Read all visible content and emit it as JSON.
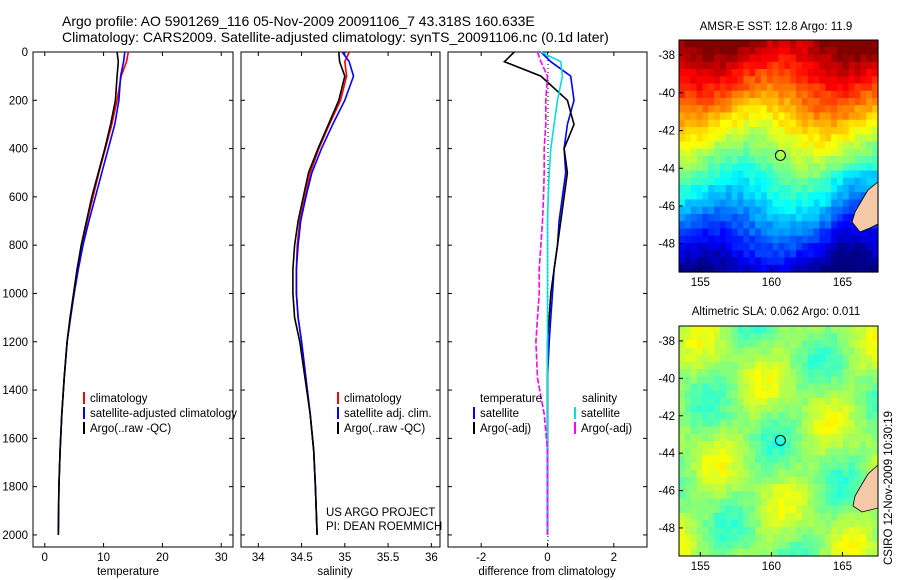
{
  "header": {
    "line1": "Argo profile: AO 5901269_116 05-Nov-2009 20091106_7 43.318S 160.633E",
    "line2": "Climatology: CARS2009. Satellite-adjusted climatology: synTS_20091106.nc (0.1d later)"
  },
  "credit": {
    "line1": "US ARGO PROJECT",
    "line2": "PI: DEAN ROEMMICH"
  },
  "side_label": "CSIRO 12-Nov-2009 10:30:19",
  "colors": {
    "climatology": "#ff0000",
    "satellite": "#0000ff",
    "argo": "#000000",
    "sal_satellite": "#00e0e0",
    "sal_argo": "#ff00ff"
  },
  "chart_data": [
    {
      "id": "temperature",
      "type": "line",
      "xlabel": "temperature",
      "xlim": [
        -2,
        32
      ],
      "xticks": [
        0,
        10,
        20,
        30
      ],
      "ylim": [
        0,
        2050
      ],
      "yticks": [
        0,
        200,
        400,
        600,
        800,
        1000,
        1200,
        1400,
        1600,
        1800,
        2000
      ],
      "y_reversed": true,
      "legend": [
        "climatology",
        "satellite-adjusted climatology",
        "Argo(..raw -QC)"
      ],
      "series": [
        {
          "name": "climatology",
          "color": "red",
          "x": [
            14.2,
            13.9,
            13.0,
            12.3,
            11.4,
            10.3,
            9.2,
            8.2,
            7.2,
            6.3,
            5.5,
            4.9,
            4.3,
            3.8,
            3.3,
            2.9,
            2.6,
            2.4,
            2.3
          ],
          "y": [
            0,
            40,
            100,
            200,
            300,
            400,
            500,
            600,
            700,
            800,
            900,
            1000,
            1100,
            1200,
            1350,
            1500,
            1650,
            1800,
            2000
          ]
        },
        {
          "name": "satellite-adjusted climatology",
          "color": "blue",
          "x": [
            13.6,
            13.4,
            12.9,
            12.6,
            11.9,
            10.8,
            9.7,
            8.6,
            7.5,
            6.5,
            5.7,
            5.0,
            4.4,
            3.8,
            3.3,
            2.9,
            2.6,
            2.4,
            2.3
          ],
          "y": [
            0,
            40,
            100,
            200,
            300,
            400,
            500,
            600,
            700,
            800,
            900,
            1000,
            1100,
            1200,
            1350,
            1500,
            1650,
            1800,
            2000
          ]
        },
        {
          "name": "Argo(..raw -QC)",
          "color": "black",
          "x": [
            12.3,
            12.5,
            12.3,
            12.0,
            11.2,
            10.2,
            9.1,
            8.0,
            7.1,
            6.2,
            5.5,
            4.9,
            4.3,
            3.8,
            3.3,
            2.9,
            2.6,
            2.4,
            2.3
          ],
          "y": [
            0,
            40,
            100,
            200,
            300,
            400,
            500,
            600,
            700,
            800,
            900,
            1000,
            1100,
            1200,
            1350,
            1500,
            1650,
            1800,
            2000
          ]
        }
      ]
    },
    {
      "id": "salinity",
      "type": "line",
      "xlabel": "salinity",
      "xticks": [
        34,
        34.5,
        35,
        35.5,
        36
      ],
      "xtick_labels": [
        "34",
        "34.5",
        "35",
        "35.5",
        "36"
      ],
      "xlim": [
        33.8,
        36.1
      ],
      "ylim": [
        0,
        2050
      ],
      "y_reversed": true,
      "legend": [
        "climatology",
        "satellite adj. clim.",
        "Argo(..raw -QC)"
      ],
      "series": [
        {
          "name": "climatology",
          "color": "red",
          "x": [
            35.05,
            35.0,
            35.02,
            34.95,
            34.82,
            34.7,
            34.6,
            34.54,
            34.48,
            34.45,
            34.44,
            34.44,
            34.46,
            34.5,
            34.55,
            34.6,
            34.64,
            34.66,
            34.68
          ],
          "y": [
            0,
            40,
            100,
            200,
            300,
            400,
            500,
            600,
            700,
            800,
            900,
            1000,
            1100,
            1200,
            1350,
            1500,
            1650,
            1800,
            2000
          ]
        },
        {
          "name": "satellite adj. clim.",
          "color": "blue",
          "x": [
            34.97,
            35.05,
            35.1,
            35.0,
            34.86,
            34.73,
            34.62,
            34.55,
            34.49,
            34.46,
            34.44,
            34.44,
            34.46,
            34.5,
            34.55,
            34.6,
            34.64,
            34.66,
            34.68
          ],
          "y": [
            0,
            40,
            100,
            200,
            300,
            400,
            500,
            600,
            700,
            800,
            900,
            1000,
            1100,
            1200,
            1350,
            1500,
            1650,
            1800,
            2000
          ]
        },
        {
          "name": "Argo(..raw -QC)",
          "color": "black",
          "x": [
            34.93,
            34.94,
            35.0,
            34.93,
            34.81,
            34.69,
            34.58,
            34.52,
            34.46,
            34.42,
            34.4,
            34.4,
            34.42,
            34.48,
            34.54,
            34.6,
            34.64,
            34.66,
            34.68
          ],
          "y": [
            0,
            40,
            100,
            200,
            300,
            400,
            500,
            600,
            700,
            800,
            900,
            1000,
            1100,
            1200,
            1350,
            1500,
            1650,
            1800,
            2000
          ]
        }
      ]
    },
    {
      "id": "difference",
      "type": "line",
      "xlabel": "difference from climatology",
      "xticks": [
        -2,
        0,
        2
      ],
      "xlim": [
        -3,
        3
      ],
      "ylim": [
        0,
        2050
      ],
      "y_reversed": true,
      "legend_group1_title": "temperature",
      "legend_group2_title": "salinity",
      "legend_group1": [
        "satellite",
        "Argo(-adj)"
      ],
      "legend_group2": [
        "satellite",
        "Argo(-adj)"
      ],
      "series": [
        {
          "name": "temperature satellite",
          "color": "blue",
          "x": [
            -0.2,
            0.1,
            0.7,
            0.8,
            0.6,
            0.5,
            0.55,
            0.45,
            0.35,
            0.3,
            0.2,
            0.15,
            0.1,
            0.05,
            0.0,
            0.0,
            0.0,
            0.0,
            0.0
          ],
          "y": [
            0,
            40,
            100,
            200,
            300,
            400,
            500,
            600,
            700,
            800,
            900,
            1000,
            1100,
            1200,
            1350,
            1500,
            1650,
            1800,
            2000
          ]
        },
        {
          "name": "temperature Argo(-adj)",
          "color": "black",
          "x": [
            -1.0,
            -1.3,
            -0.2,
            0.6,
            0.8,
            0.5,
            0.6,
            0.5,
            0.4,
            0.3,
            0.2,
            0.1,
            0.05,
            0.0,
            0.0,
            0.0,
            0.0,
            0.0,
            0.0
          ],
          "y": [
            0,
            40,
            100,
            200,
            300,
            400,
            500,
            600,
            700,
            800,
            900,
            1000,
            1100,
            1200,
            1350,
            1500,
            1650,
            1800,
            2000
          ]
        },
        {
          "name": "salinity satellite",
          "color": "cyan",
          "x": [
            -0.2,
            0.4,
            0.45,
            0.3,
            0.2,
            0.1,
            0.05,
            0.02,
            0.0,
            0.0,
            0.0,
            0.0,
            0.0,
            0.0,
            0.0,
            0.0,
            0.0,
            0.0,
            0.0
          ],
          "y": [
            0,
            40,
            100,
            200,
            300,
            400,
            500,
            600,
            700,
            800,
            900,
            1000,
            1100,
            1200,
            1350,
            1500,
            1650,
            1800,
            2000
          ]
        },
        {
          "name": "salinity Argo(-adj)",
          "color": "magenta",
          "x": [
            -0.3,
            -0.2,
            0.0,
            -0.05,
            -0.05,
            -0.1,
            -0.1,
            -0.12,
            -0.15,
            -0.2,
            -0.25,
            -0.25,
            -0.3,
            -0.35,
            -0.3,
            -0.1,
            0.0,
            0.0,
            0.0
          ],
          "y": [
            0,
            40,
            100,
            200,
            300,
            400,
            500,
            600,
            700,
            800,
            900,
            1000,
            1100,
            1200,
            1350,
            1500,
            1650,
            1800,
            2000
          ]
        }
      ]
    },
    {
      "id": "sst_map",
      "type": "heatmap",
      "title": "AMSR-E SST: 12.8 Argo: 11.9",
      "xticks": [
        155,
        160,
        165
      ],
      "yticks": [
        -38,
        -40,
        -42,
        -44,
        -46,
        -48
      ],
      "xlim": [
        153.5,
        167.5
      ],
      "ylim": [
        -49.5,
        -37.2
      ],
      "marker": {
        "lon": 160.633,
        "lat": -43.318
      }
    },
    {
      "id": "sla_map",
      "type": "heatmap",
      "title": "Altimetric SLA: 0.062 Argo: 0.011",
      "xticks": [
        155,
        160,
        165
      ],
      "yticks": [
        -38,
        -40,
        -42,
        -44,
        -46,
        -48
      ],
      "xlim": [
        153.5,
        167.5
      ],
      "ylim": [
        -49.5,
        -37.2
      ],
      "marker": {
        "lon": 160.633,
        "lat": -43.318
      }
    }
  ]
}
